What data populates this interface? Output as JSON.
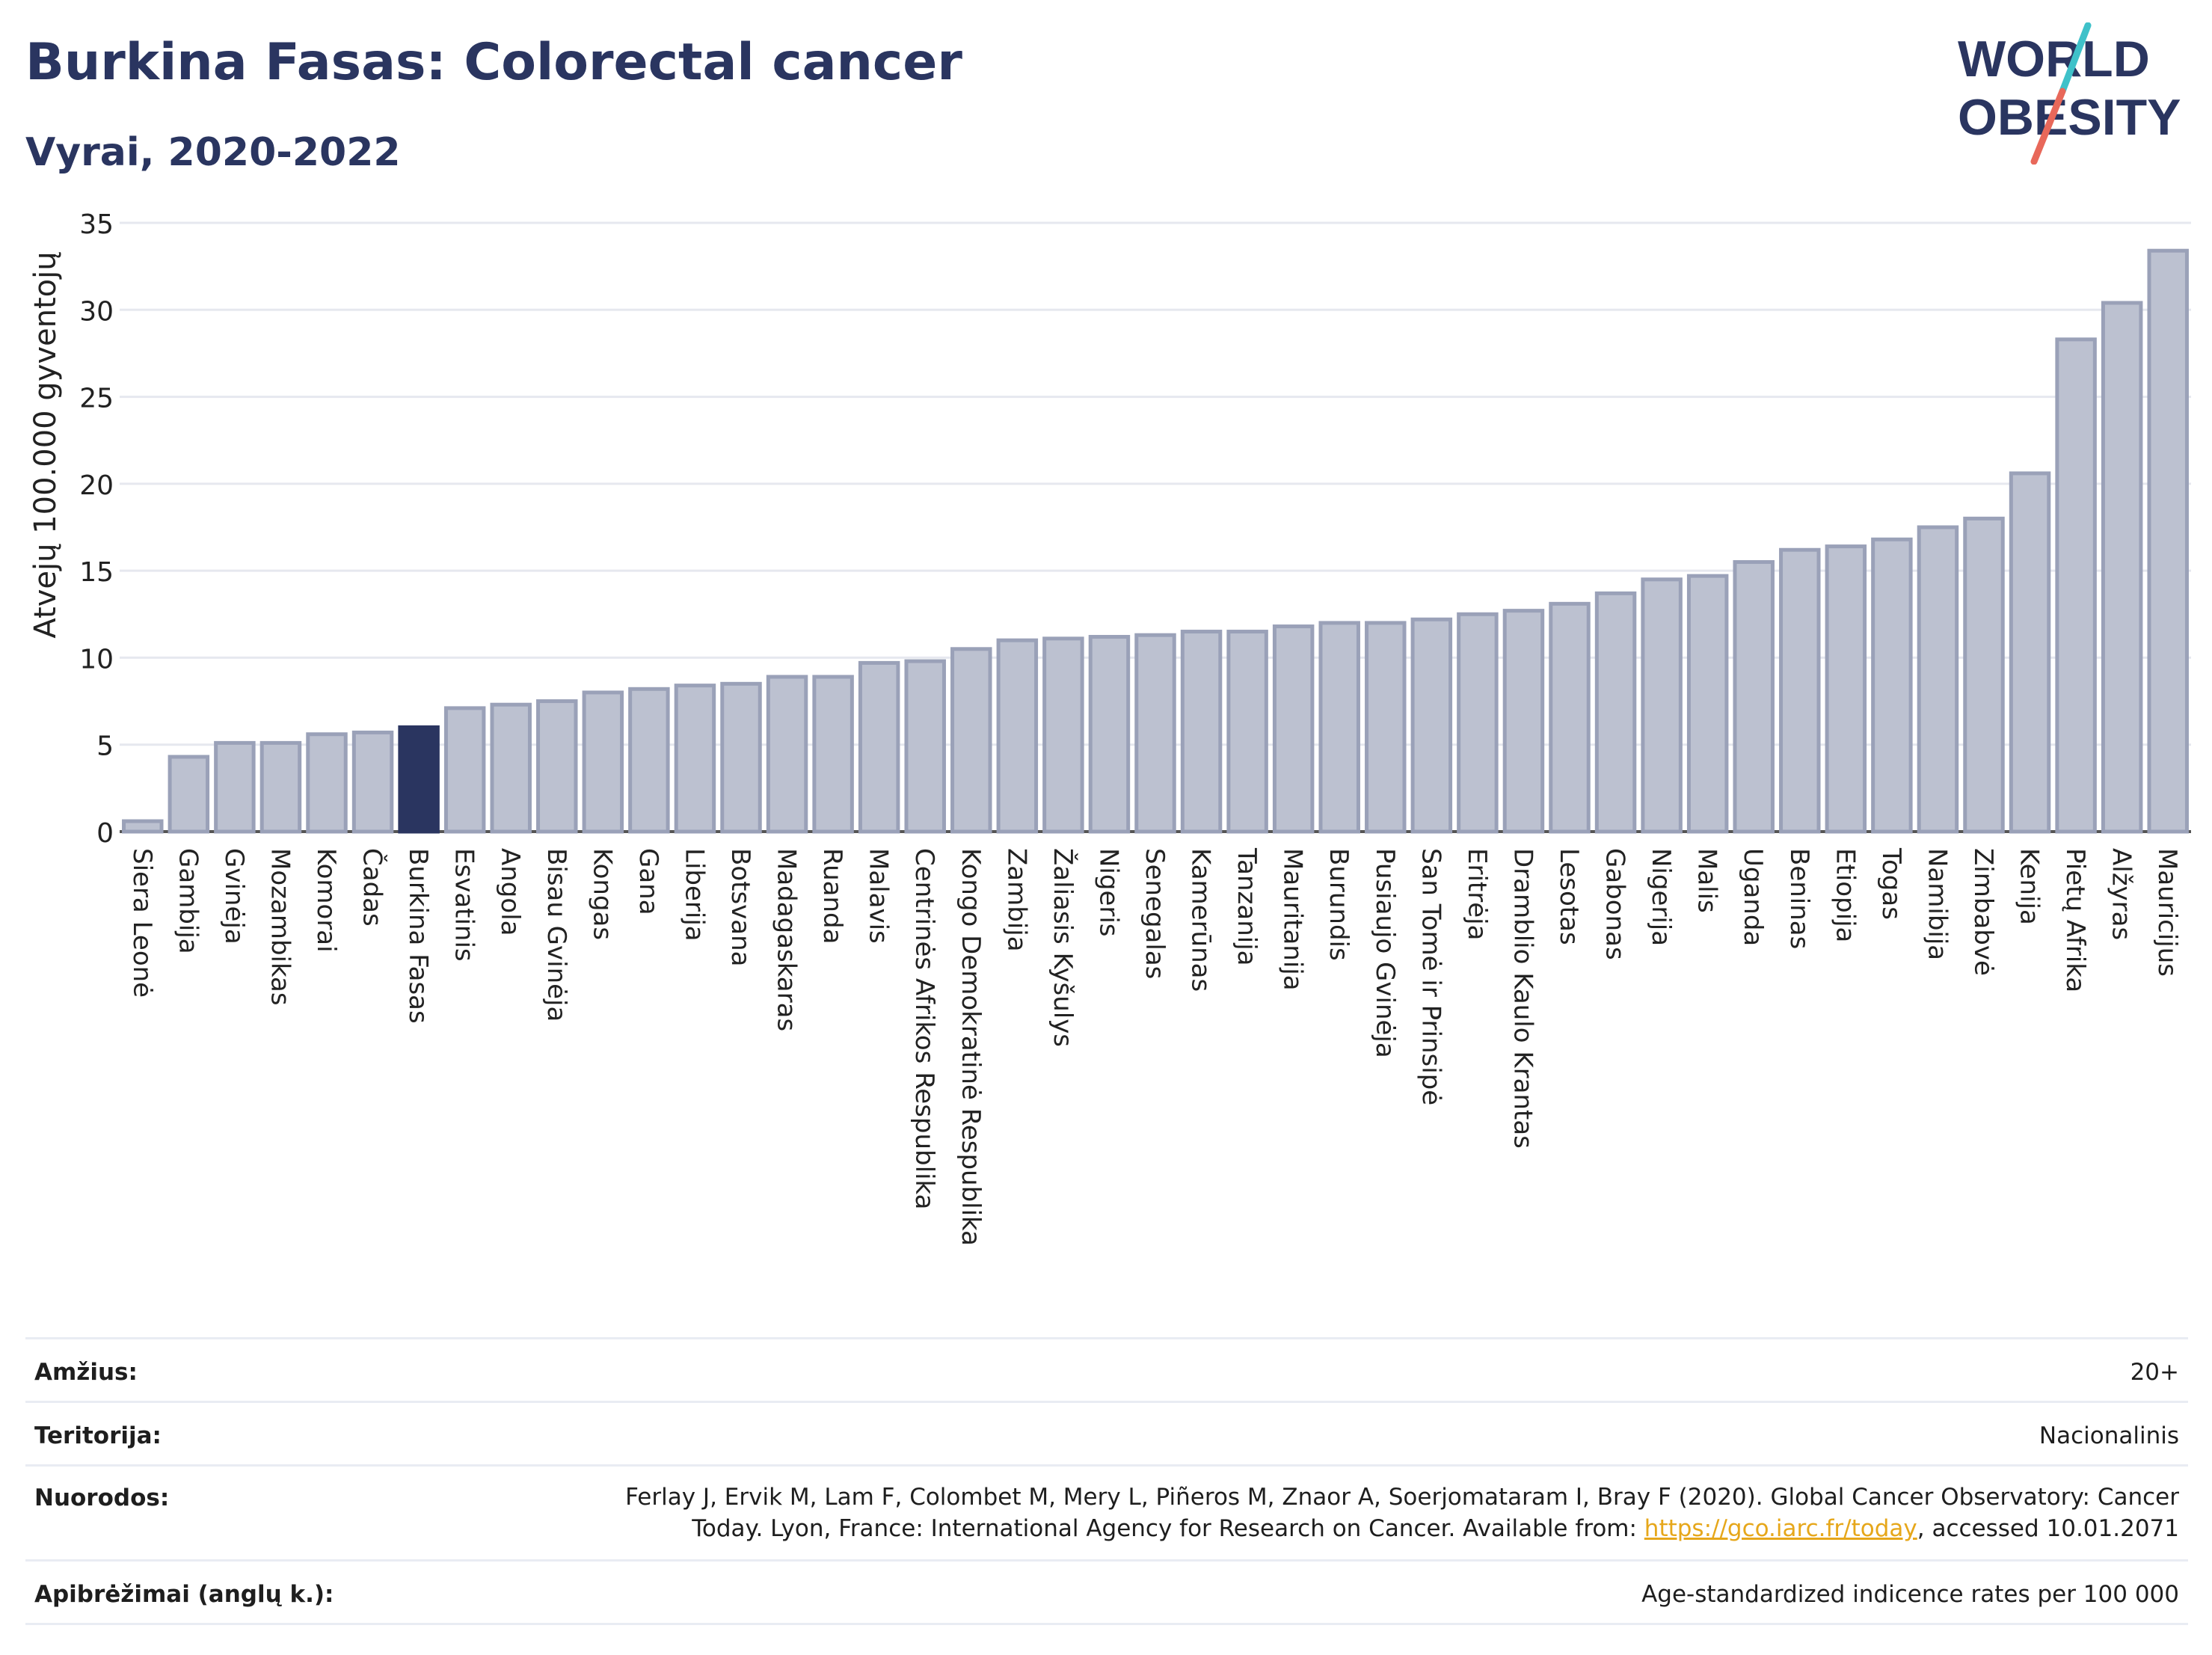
{
  "header": {
    "title": "Burkina Fasas: Colorectal cancer",
    "subtitle": "Vyrai, 2020-2022"
  },
  "logo": {
    "line1": "WORLD",
    "line2": "OBESITY",
    "colors": {
      "text": "#2a3560",
      "slash_teal": "#3fc1c9",
      "slash_red": "#e8685a"
    }
  },
  "colors": {
    "bar_default_fill": "#bcc1d0",
    "bar_default_stroke": "#9aa1b8",
    "bar_highlight": "#2a3560",
    "grid": "#e6e8ef",
    "axis": "#555555",
    "text": "#222222"
  },
  "chart_data": {
    "type": "bar",
    "ylabel": "Atvejų 100.000 gyventojų",
    "ylim": [
      0,
      35
    ],
    "yticks": [
      0,
      5,
      10,
      15,
      20,
      25,
      30,
      35
    ],
    "grid": true,
    "highlight": "Burkina Fasas",
    "categories": [
      "Siera Leonė",
      "Gambija",
      "Gvinėja",
      "Mozambikas",
      "Komorai",
      "Čadas",
      "Burkina Fasas",
      "Esvatinis",
      "Angola",
      "Bisau Gvinėja",
      "Kongas",
      "Gana",
      "Liberija",
      "Botsvana",
      "Madagaskaras",
      "Ruanda",
      "Malavis",
      "Centrinės Afrikos Respublika",
      "Kongo Demokratinė Respublika",
      "Zambija",
      "Žaliasis Kyšulys",
      "Nigeris",
      "Senegalas",
      "Kamerūnas",
      "Tanzanija",
      "Mauritanija",
      "Burundis",
      "Pusiaujo Gvinėja",
      "San Tomė ir Prinsipė",
      "Eritrėja",
      "Dramblio Kaulo Krantas",
      "Lesotas",
      "Gabonas",
      "Nigerija",
      "Malis",
      "Uganda",
      "Beninas",
      "Etiopija",
      "Togas",
      "Namibija",
      "Zimbabvė",
      "Kenija",
      "Pietų Afrika",
      "Alžyras",
      "Mauricijus"
    ],
    "values": [
      0.6,
      4.3,
      5.1,
      5.1,
      5.6,
      5.7,
      6.0,
      7.1,
      7.3,
      7.5,
      8.0,
      8.2,
      8.4,
      8.5,
      8.9,
      8.9,
      9.7,
      9.8,
      10.5,
      11.0,
      11.1,
      11.2,
      11.3,
      11.5,
      11.5,
      11.8,
      12.0,
      12.0,
      12.2,
      12.5,
      12.7,
      13.1,
      13.7,
      14.5,
      14.7,
      15.5,
      16.2,
      16.4,
      16.8,
      17.5,
      18.0,
      20.6,
      28.3,
      30.4,
      33.4
    ]
  },
  "footer": {
    "rows": [
      {
        "label": "Amžius:",
        "value": "20+"
      },
      {
        "label": "Teritorija:",
        "value": "Nacionalinis"
      },
      {
        "label": "Nuorodos:",
        "ref_line1": "Ferlay J, Ervik M, Lam F, Colombet M, Mery L, Piñeros M, Znaor A, Soerjomataram I, Bray F (2020). Global Cancer Observatory: Cancer",
        "ref_line2_pre": "Today. Lyon, France: International Agency for Research on Cancer. Available from: ",
        "ref_link": "https://gco.iarc.fr/today",
        "ref_line2_post": ", accessed 10.01.2071"
      },
      {
        "label": "Apibrėžimai (anglų k.):",
        "value": "Age-standardized indicence rates per 100 000"
      }
    ]
  }
}
